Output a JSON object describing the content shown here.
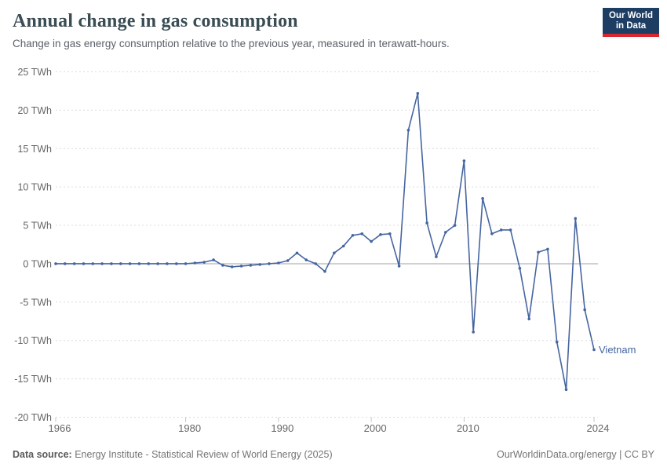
{
  "header": {
    "title": "Annual change in gas consumption",
    "subtitle": "Change in gas energy consumption relative to the previous year, measured in terawatt-hours.",
    "logo": {
      "line1": "Our World",
      "line2": "in Data"
    }
  },
  "chart_data": {
    "type": "line",
    "title": "Annual change in gas consumption",
    "unit": "TWh",
    "entity": "Vietnam",
    "xlim": [
      1966,
      2024
    ],
    "ylim": [
      -20,
      25
    ],
    "grid": "horizontal-dashed",
    "legend_position": "label-at-line-end",
    "yticks": [
      {
        "value": 25,
        "label": "25 TWh"
      },
      {
        "value": 20,
        "label": "20 TWh"
      },
      {
        "value": 15,
        "label": "15 TWh"
      },
      {
        "value": 10,
        "label": "10 TWh"
      },
      {
        "value": 5,
        "label": "5 TWh"
      },
      {
        "value": 0,
        "label": "0 TWh"
      },
      {
        "value": -5,
        "label": "-5 TWh"
      },
      {
        "value": -10,
        "label": "-10 TWh"
      },
      {
        "value": -15,
        "label": "-15 TWh"
      },
      {
        "value": -20,
        "label": "-20 TWh"
      }
    ],
    "xticks": [
      {
        "value": 1966,
        "label": "1966"
      },
      {
        "value": 1980,
        "label": "1980"
      },
      {
        "value": 1990,
        "label": "1990"
      },
      {
        "value": 2000,
        "label": "2000"
      },
      {
        "value": 2010,
        "label": "2010"
      },
      {
        "value": 2024,
        "label": "2024"
      }
    ],
    "series": [
      {
        "name": "Vietnam",
        "years": [
          1966,
          1967,
          1968,
          1969,
          1970,
          1971,
          1972,
          1973,
          1974,
          1975,
          1976,
          1977,
          1978,
          1979,
          1980,
          1981,
          1982,
          1983,
          1984,
          1985,
          1986,
          1987,
          1988,
          1989,
          1990,
          1991,
          1992,
          1993,
          1994,
          1995,
          1996,
          1997,
          1998,
          1999,
          2000,
          2001,
          2002,
          2003,
          2004,
          2005,
          2006,
          2007,
          2008,
          2009,
          2010,
          2011,
          2012,
          2013,
          2014,
          2015,
          2016,
          2017,
          2018,
          2019,
          2020,
          2021,
          2022,
          2023,
          2024
        ],
        "values": [
          0,
          0,
          0,
          0,
          0,
          0,
          0,
          0,
          0,
          0,
          0,
          0,
          0,
          0,
          0,
          0.1,
          0.2,
          0.5,
          -0.2,
          -0.4,
          -0.3,
          -0.2,
          -0.1,
          0,
          0.1,
          0.4,
          1.4,
          0.5,
          0,
          -1,
          1.4,
          2.3,
          3.7,
          3.9,
          2.9,
          3.8,
          3.9,
          -0.3,
          17.4,
          22.2,
          5.3,
          0.9,
          4.1,
          5,
          13.4,
          -8.9,
          8.5,
          3.9,
          4.4,
          4.4,
          -0.6,
          -7.2,
          1.5,
          1.9,
          -10.2,
          -16.4,
          5.9,
          -6,
          -11.2
        ]
      }
    ]
  },
  "footer": {
    "source_label": "Data source:",
    "source_text": "Energy Institute - Statistical Review of World Energy (2025)",
    "link_text": "OurWorldinData.org/energy | CC BY"
  },
  "colors": {
    "line": "#4665a0",
    "logo_bg": "#1d3d63",
    "logo_accent": "#d7282f",
    "grid": "#dcdcdc",
    "zero_line": "#a3a3a3",
    "axis_text": "#666666"
  }
}
